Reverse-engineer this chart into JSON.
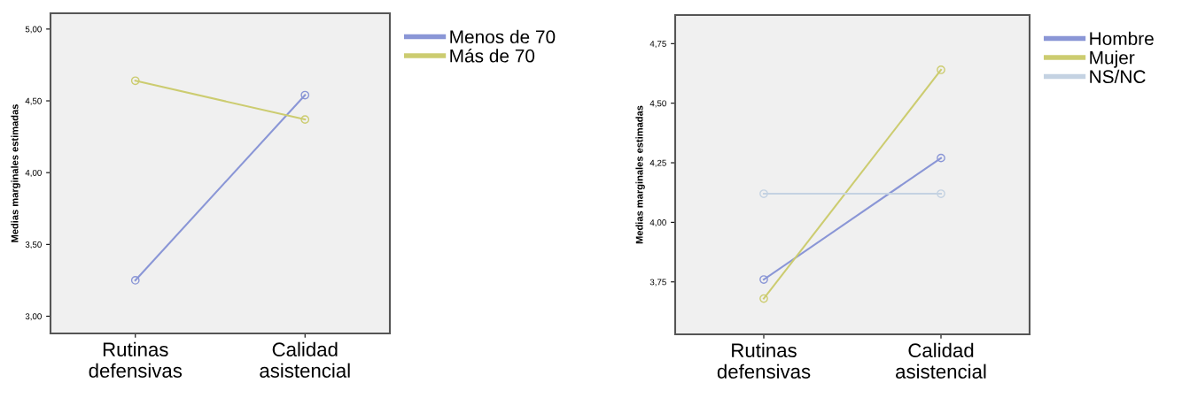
{
  "chart_data": [
    {
      "type": "line",
      "ylabel": "Medias marginales estimadas",
      "categories": [
        "Rutinas\ndefensivas",
        "Calidad\nasistencial"
      ],
      "series": [
        {
          "name": "Menos de 70",
          "color": "#8a96d6",
          "values": [
            3.25,
            4.54
          ]
        },
        {
          "name": "Más de 70",
          "color": "#cccc70",
          "values": [
            4.64,
            4.37
          ]
        }
      ],
      "ylim": [
        2.88,
        5.11
      ],
      "yticks": [
        {
          "value": 3.0,
          "label": "3,00"
        },
        {
          "value": 3.5,
          "label": "3,50"
        },
        {
          "value": 4.0,
          "label": "4,00"
        },
        {
          "value": 4.5,
          "label": "4,50"
        },
        {
          "value": 5.0,
          "label": "5,00"
        }
      ],
      "marker": "circle",
      "line_style": "solid",
      "grid": false,
      "legend": "top right"
    },
    {
      "type": "line",
      "ylabel": "Medias marginales estimadas",
      "categories": [
        "Rutinas\ndefensivas",
        "Calidad\nasistencial"
      ],
      "series": [
        {
          "name": "Hombre",
          "color": "#8a96d6",
          "values": [
            3.76,
            4.27
          ]
        },
        {
          "name": "Mujer",
          "color": "#cccc70",
          "values": [
            3.68,
            4.64
          ]
        },
        {
          "name": "NS/NC",
          "color": "#c4d2e2",
          "values": [
            4.12,
            4.12
          ]
        }
      ],
      "ylim": [
        3.53,
        4.87
      ],
      "yticks": [
        {
          "value": 3.75,
          "label": "3,75"
        },
        {
          "value": 4.0,
          "label": "4,00"
        },
        {
          "value": 4.25,
          "label": "4,25"
        },
        {
          "value": 4.5,
          "label": "4,50"
        },
        {
          "value": 4.75,
          "label": "4,75"
        }
      ],
      "marker": "circle",
      "line_style": "solid",
      "grid": false,
      "legend": "top right"
    }
  ]
}
